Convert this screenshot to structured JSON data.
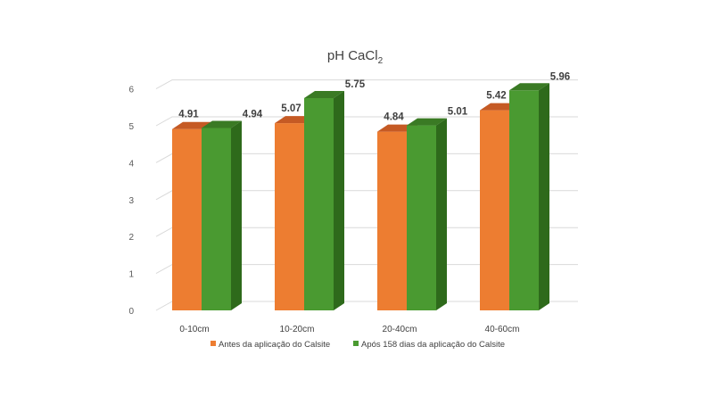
{
  "chart_data": {
    "type": "bar",
    "title_main": "pH CaCl",
    "title_sub": "2",
    "categories": [
      "0-10cm",
      "10-20cm",
      "20-40cm",
      "40-60cm"
    ],
    "series": [
      {
        "name": "Antes da aplicação do Calsite",
        "values": [
          4.91,
          5.07,
          4.84,
          5.42
        ],
        "labels": [
          "4.91",
          "5.07",
          "4.84",
          "5.42"
        ],
        "color": "#ED7D31",
        "top_color": "#C55A24",
        "side_color": "#B8551F"
      },
      {
        "name": "Após 158 dias da aplicação do Calsite",
        "values": [
          4.94,
          5.75,
          5.01,
          5.96
        ],
        "labels": [
          "4.94",
          "5.75",
          "5.01",
          "5.96"
        ],
        "color": "#4A9A31",
        "top_color": "#3A7A24",
        "side_color": "#2E6A1B"
      }
    ],
    "y_ticks": [
      "0",
      "1",
      "2",
      "3",
      "4",
      "5",
      "6"
    ],
    "ylim": [
      0,
      6
    ],
    "grid": true,
    "legend_position": "bottom",
    "xlabel": "",
    "ylabel": ""
  }
}
